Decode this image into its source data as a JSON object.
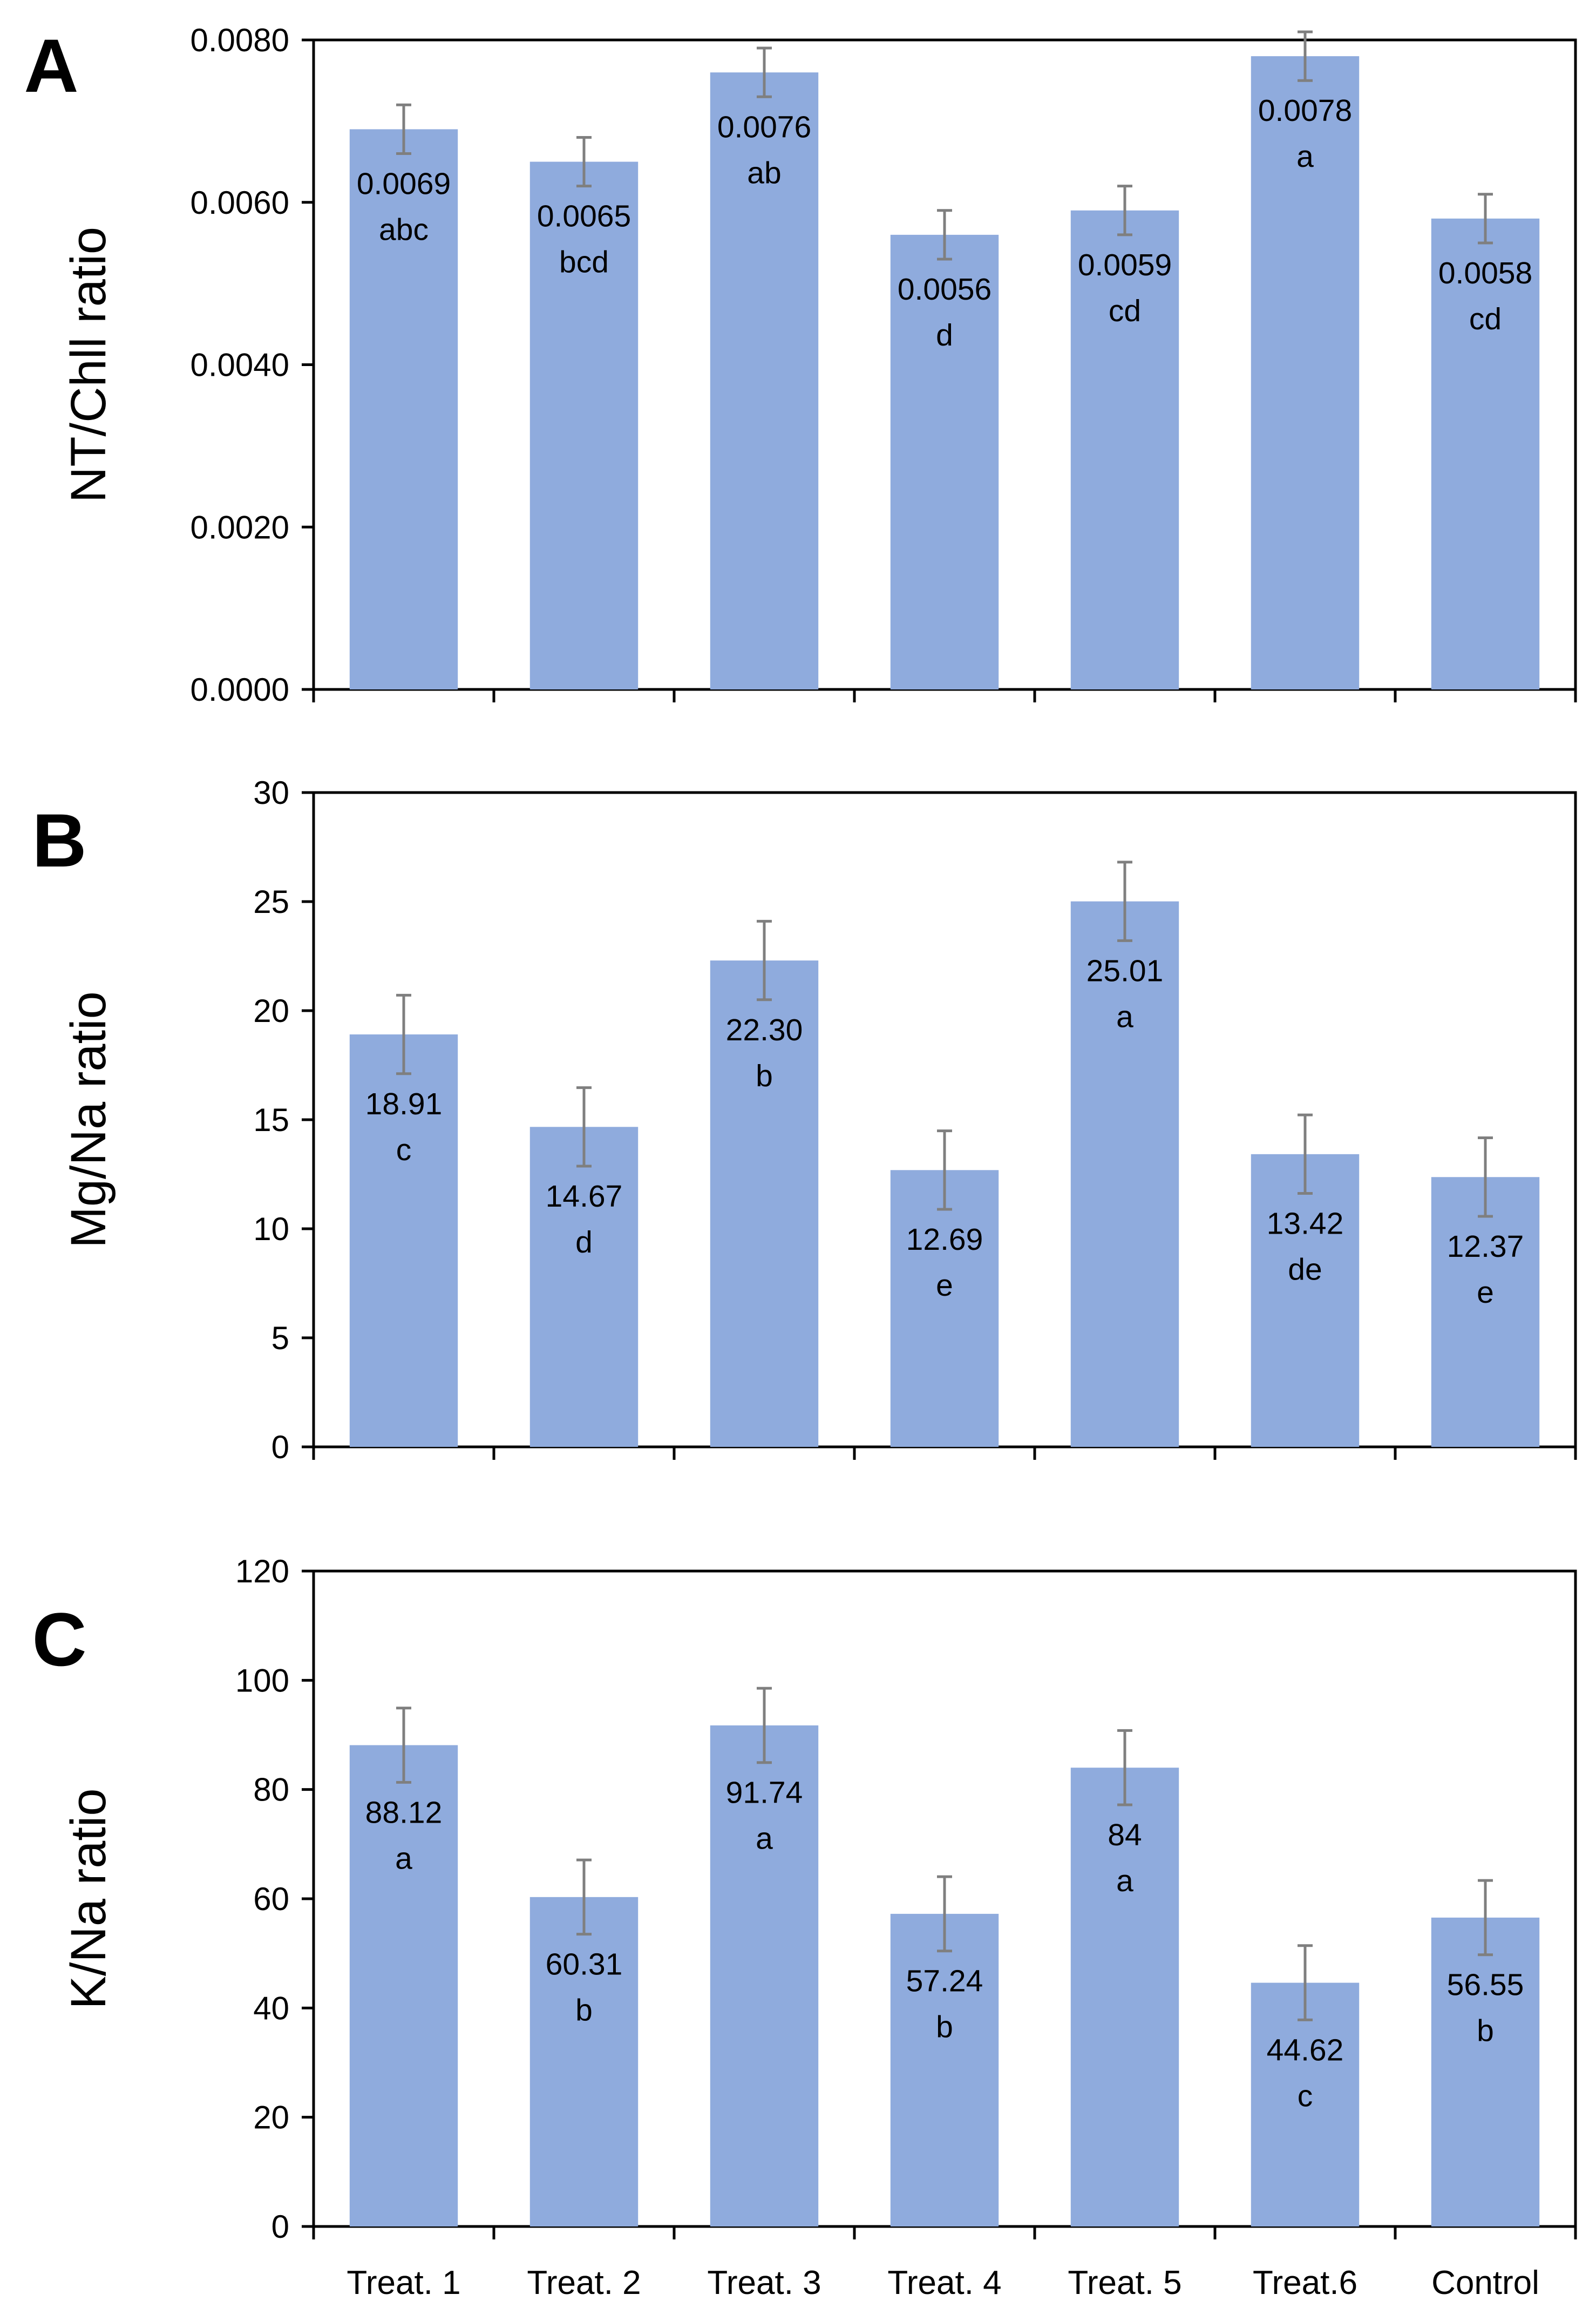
{
  "colors": {
    "bar": "#8FABDD",
    "error_bar": "#7F7F7F",
    "axis": "#000000"
  },
  "chart_data": [
    {
      "type": "bar",
      "panel": "A",
      "ylabel": "NT/Chll ratio",
      "ylim": [
        0,
        0.008
      ],
      "yticks": [
        "0.0000",
        "0.0020",
        "0.0040",
        "0.0060",
        "0.0080"
      ],
      "ytick_step": 0.002,
      "categories": [
        "Treat. 1",
        "Treat. 2",
        "Treat. 3",
        "Treat. 4",
        "Treat. 5",
        "Treat.6",
        "Control"
      ],
      "values": [
        0.0069,
        0.0065,
        0.0076,
        0.0056,
        0.0059,
        0.0078,
        0.0058
      ],
      "value_labels": [
        "0.0069",
        "0.0065",
        "0.0076",
        "0.0056",
        "0.0059",
        "0.0078",
        "0.0058"
      ],
      "errors": [
        0.0003,
        0.0003,
        0.0003,
        0.0003,
        0.0003,
        0.0003,
        0.0003
      ],
      "letters": [
        "abc",
        "bcd",
        "ab",
        "d",
        "cd",
        "a",
        "cd"
      ]
    },
    {
      "type": "bar",
      "panel": "B",
      "ylabel": "Mg/Na ratio",
      "ylim": [
        0,
        30
      ],
      "yticks": [
        "0",
        "5",
        "10",
        "15",
        "20",
        "25",
        "30"
      ],
      "ytick_step": 5,
      "categories": [
        "Treat. 1",
        "Treat. 2",
        "Treat. 3",
        "Treat. 4",
        "Treat. 5",
        "Treat.6",
        "Control"
      ],
      "values": [
        18.91,
        14.67,
        22.3,
        12.69,
        25.01,
        13.42,
        12.37
      ],
      "value_labels": [
        "18.91",
        "14.67",
        "22.30",
        "12.69",
        "25.01",
        "13.42",
        "12.37"
      ],
      "errors": [
        1.8,
        1.8,
        1.8,
        1.8,
        1.8,
        1.8,
        1.8
      ],
      "letters": [
        "c",
        "d",
        "b",
        "e",
        "a",
        "de",
        "e"
      ]
    },
    {
      "type": "bar",
      "panel": "C",
      "ylabel": "K/Na ratio",
      "ylim": [
        0,
        120
      ],
      "yticks": [
        "0",
        "20",
        "40",
        "60",
        "80",
        "100",
        "120"
      ],
      "ytick_step": 20,
      "categories": [
        "Treat. 1",
        "Treat. 2",
        "Treat. 3",
        "Treat. 4",
        "Treat. 5",
        "Treat.6",
        "Control"
      ],
      "values": [
        88.12,
        60.31,
        91.74,
        57.24,
        84,
        44.62,
        56.55
      ],
      "value_labels": [
        "88.12",
        "60.31",
        "91.74",
        "57.24",
        "84",
        "44.62",
        "56.55"
      ],
      "errors": [
        6.8,
        6.8,
        6.8,
        6.8,
        6.8,
        6.8,
        6.8
      ],
      "letters": [
        "a",
        "b",
        "a",
        "b",
        "a",
        "c",
        "b"
      ],
      "show_xlabels": true
    }
  ]
}
